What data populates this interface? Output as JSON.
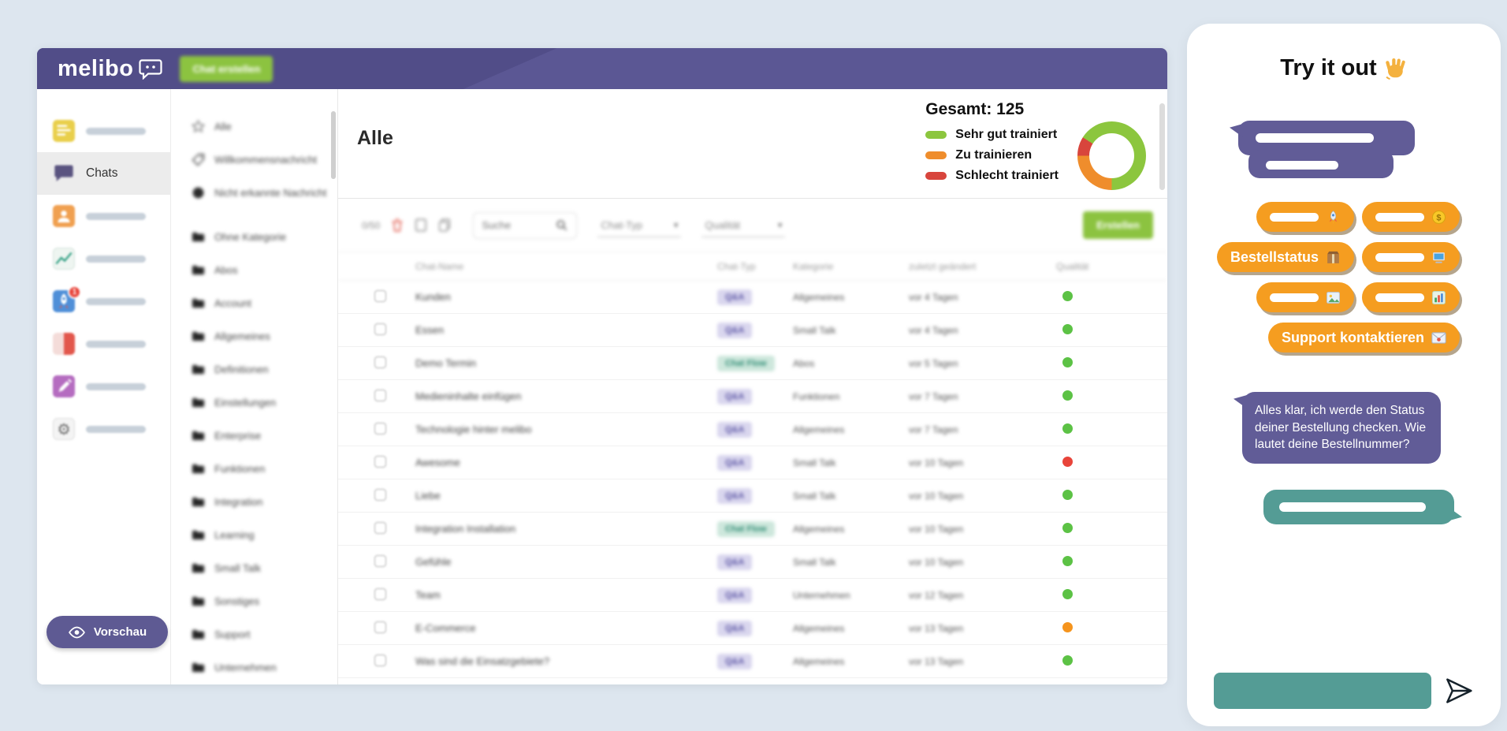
{
  "colors": {
    "navbar_purple": "#5b5794",
    "bubble_purple": "#615c97",
    "teal": "#549c95",
    "pill_orange": "#f59d20",
    "accent_green": "#8cc340",
    "status_green": "#5cc245",
    "status_orange": "#f5941d",
    "status_red": "#e8443a"
  },
  "glyphs": {
    "caret_down": "▾"
  },
  "navbar": {
    "logo_text": "melibo",
    "create_button_label": "Chat erstellen"
  },
  "sidebar": {
    "items": [
      {
        "icon": "note",
        "label": ""
      },
      {
        "icon": "chat-bubble",
        "label": "Chats",
        "active": true
      },
      {
        "icon": "team",
        "label": ""
      },
      {
        "icon": "line-chart",
        "label": ""
      },
      {
        "icon": "rocket-blue",
        "label": "",
        "badge": "1"
      },
      {
        "icon": "split-red",
        "label": ""
      },
      {
        "icon": "pen-purple",
        "label": ""
      },
      {
        "icon": "gear",
        "label": ""
      }
    ],
    "preview_button_label": "Vorschau"
  },
  "categories": {
    "items": [
      {
        "icon": "star",
        "label": "Alle"
      },
      {
        "icon": "tag",
        "label": "Willkommensnachricht"
      },
      {
        "icon": "dot",
        "label": "Nicht erkannte Nachricht"
      },
      {
        "icon": "folder",
        "label": "Ohne Kategorie",
        "gap_before": true
      },
      {
        "icon": "folder",
        "label": "Abos"
      },
      {
        "icon": "folder",
        "label": "Account"
      },
      {
        "icon": "folder",
        "label": "Allgemeines"
      },
      {
        "icon": "folder",
        "label": "Definitionen"
      },
      {
        "icon": "folder",
        "label": "Einstellungen"
      },
      {
        "icon": "folder",
        "label": "Enterprise"
      },
      {
        "icon": "folder",
        "label": "Funktionen"
      },
      {
        "icon": "folder",
        "label": "Integration"
      },
      {
        "icon": "folder",
        "label": "Learning"
      },
      {
        "icon": "folder",
        "label": "Small Talk"
      },
      {
        "icon": "folder",
        "label": "Sonstiges"
      },
      {
        "icon": "folder",
        "label": "Support"
      },
      {
        "icon": "folder",
        "label": "Unternehmen"
      }
    ]
  },
  "main": {
    "page_title": "Alle",
    "stats": {
      "total_label": "Gesamt: 125",
      "legend": [
        {
          "label": "Sehr gut trainiert",
          "color": "#8cc63e"
        },
        {
          "label": "Zu trainieren",
          "color": "#ef8d2c"
        },
        {
          "label": "Schlecht trainiert",
          "color": "#d8453c"
        }
      ],
      "donut": {
        "type": "donut",
        "total": 125,
        "segments": [
          {
            "label": "Schlecht trainiert",
            "color": "#d8453c",
            "pct": 9
          },
          {
            "label": "Sehr gut trainiert",
            "color": "#8cc63e",
            "pct": 66
          },
          {
            "label": "Zu trainieren",
            "color": "#ef8d2c",
            "pct": 25
          }
        ]
      }
    },
    "toolbar": {
      "selection_counter": "0/50",
      "search_placeholder": "Suche",
      "filter_chat_type": "Chat-Typ",
      "filter_quality": "Qualität",
      "create_button_label": "Erstellen"
    },
    "table": {
      "headers": [
        "Chat-Name",
        "Chat-Typ",
        "Kategorie",
        "zuletzt geändert",
        "Qualität"
      ],
      "rows": [
        {
          "name": "Kunden",
          "type": "Q&A",
          "category": "Allgemeines",
          "modified": "vor 4 Tagen",
          "quality": "green"
        },
        {
          "name": "Essen",
          "type": "Q&A",
          "category": "Small Talk",
          "modified": "vor 4 Tagen",
          "quality": "green"
        },
        {
          "name": "Demo Termin",
          "type": "Chat Flow",
          "category": "Abos",
          "modified": "vor 5 Tagen",
          "quality": "green"
        },
        {
          "name": "Medieninhalte einfügen",
          "type": "Q&A",
          "category": "Funktionen",
          "modified": "vor 7 Tagen",
          "quality": "green"
        },
        {
          "name": "Technologie hinter melibo",
          "type": "Q&A",
          "category": "Allgemeines",
          "modified": "vor 7 Tagen",
          "quality": "green"
        },
        {
          "name": "Awesome",
          "type": "Q&A",
          "category": "Small Talk",
          "modified": "vor 10 Tagen",
          "quality": "red"
        },
        {
          "name": "Liebe",
          "type": "Q&A",
          "category": "Small Talk",
          "modified": "vor 10 Tagen",
          "quality": "green"
        },
        {
          "name": "Integration Installation",
          "type": "Chat Flow",
          "category": "Allgemeines",
          "modified": "vor 10 Tagen",
          "quality": "green"
        },
        {
          "name": "Gefühle",
          "type": "Q&A",
          "category": "Small Talk",
          "modified": "vor 10 Tagen",
          "quality": "green"
        },
        {
          "name": "Team",
          "type": "Q&A",
          "category": "Unternehmen",
          "modified": "vor 12 Tagen",
          "quality": "green"
        },
        {
          "name": "E-Commerce",
          "type": "Q&A",
          "category": "Allgemeines",
          "modified": "vor 13 Tagen",
          "quality": "orange"
        },
        {
          "name": "Was sind die Einsatzgebiete?",
          "type": "Q&A",
          "category": "Allgemeines",
          "modified": "vor 13 Tagen",
          "quality": "green"
        }
      ]
    }
  },
  "chat_widget": {
    "title": "Try it out",
    "quick_reply_rows": [
      [
        {
          "label": "",
          "icon": "rocket"
        },
        {
          "label": "",
          "icon": "coin"
        }
      ],
      [
        {
          "label": "Bestellstatus",
          "icon": "package"
        },
        {
          "label": "",
          "icon": "computer"
        }
      ],
      [
        {
          "label": "",
          "icon": "picture"
        },
        {
          "label": "",
          "icon": "chart"
        }
      ],
      [
        {
          "label": "Support kontaktieren",
          "icon": "envelope"
        }
      ]
    ],
    "bot_message": "Alles klar, ich werde den Status deiner Bestellung checken. Wie lautet deine Bestellnummer?"
  }
}
